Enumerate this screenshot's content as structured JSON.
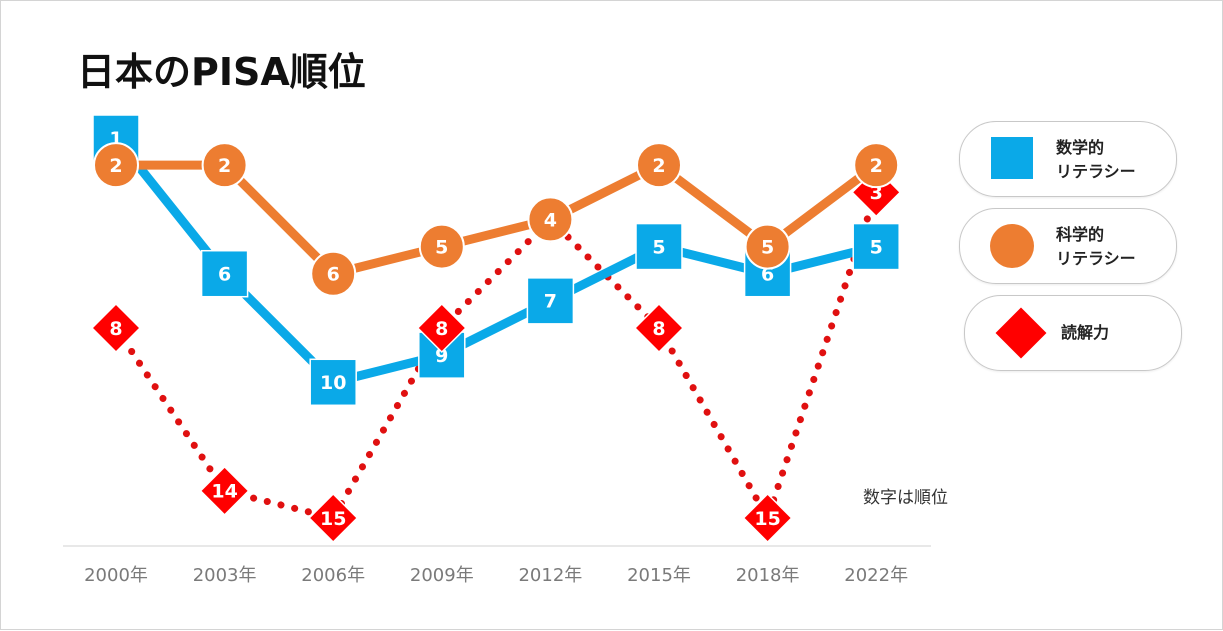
{
  "title": "日本のPISA順位",
  "note": "数字は順位",
  "colors": {
    "math": "#0aa9e8",
    "science": "#ed7d31",
    "reading": "#ff0000",
    "reading_line": "#e01010",
    "axis": "#d9d9d9",
    "tick_text": "#7a7a7a"
  },
  "chart_data": {
    "type": "line",
    "title": "日本のPISA順位",
    "categories": [
      "2000年",
      "2003年",
      "2006年",
      "2009年",
      "2012年",
      "2015年",
      "2018年",
      "2022年"
    ],
    "y_axis": {
      "inverted": true,
      "ylim": [
        1,
        15
      ],
      "visible": false
    },
    "grid": false,
    "legend_position": "right",
    "series": [
      {
        "key": "math",
        "name": "数学的\nリテラシー",
        "marker": "square",
        "line": "solid",
        "values": [
          1,
          6,
          10,
          9,
          7,
          5,
          6,
          5
        ]
      },
      {
        "key": "science",
        "name": "科学的\nリテラシー",
        "marker": "circle",
        "line": "solid",
        "values": [
          2,
          2,
          6,
          5,
          4,
          2,
          5,
          2
        ]
      },
      {
        "key": "reading",
        "name": "読解力",
        "marker": "diamond",
        "line": "dotted",
        "values": [
          8,
          14,
          15,
          8,
          4,
          8,
          15,
          3
        ]
      }
    ]
  }
}
